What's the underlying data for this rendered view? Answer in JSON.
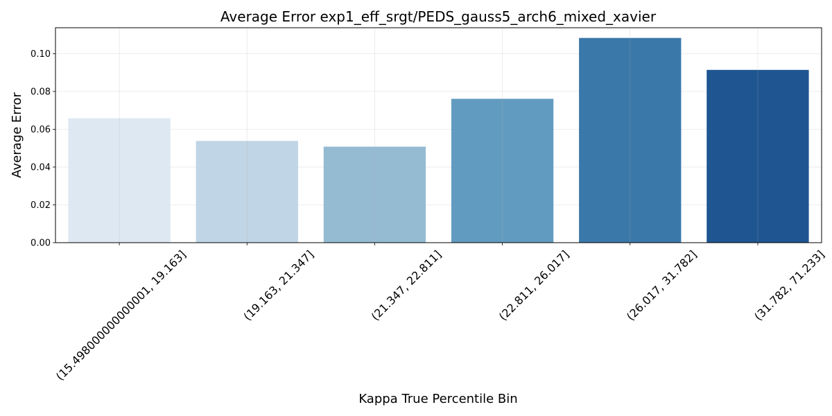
{
  "chart_data": {
    "type": "bar",
    "title": "Average Error exp1_eff_srgt/PEDS_gauss5_arch6_mixed_xavier",
    "xlabel": "Kappa True Percentile Bin",
    "ylabel": "Average Error",
    "categories": [
      "(15.498000000000001, 19.163]",
      "(19.163, 21.347]",
      "(21.347, 22.811]",
      "(22.811, 26.017]",
      "(26.017, 31.782]",
      "(31.782, 71.233]"
    ],
    "values": [
      0.0658,
      0.0538,
      0.0508,
      0.0761,
      0.1083,
      0.0914
    ],
    "colors": [
      "#dee8f3",
      "#c0d5e5",
      "#95bbd3",
      "#629bc0",
      "#3b78aa",
      "#1f5590"
    ],
    "ylim": [
      0,
      0.1137
    ],
    "yticks": [
      0.0,
      0.02,
      0.04,
      0.06,
      0.08,
      0.1
    ],
    "ytick_labels": [
      "0.00",
      "0.02",
      "0.04",
      "0.06",
      "0.08",
      "0.10"
    ],
    "grid": true
  }
}
